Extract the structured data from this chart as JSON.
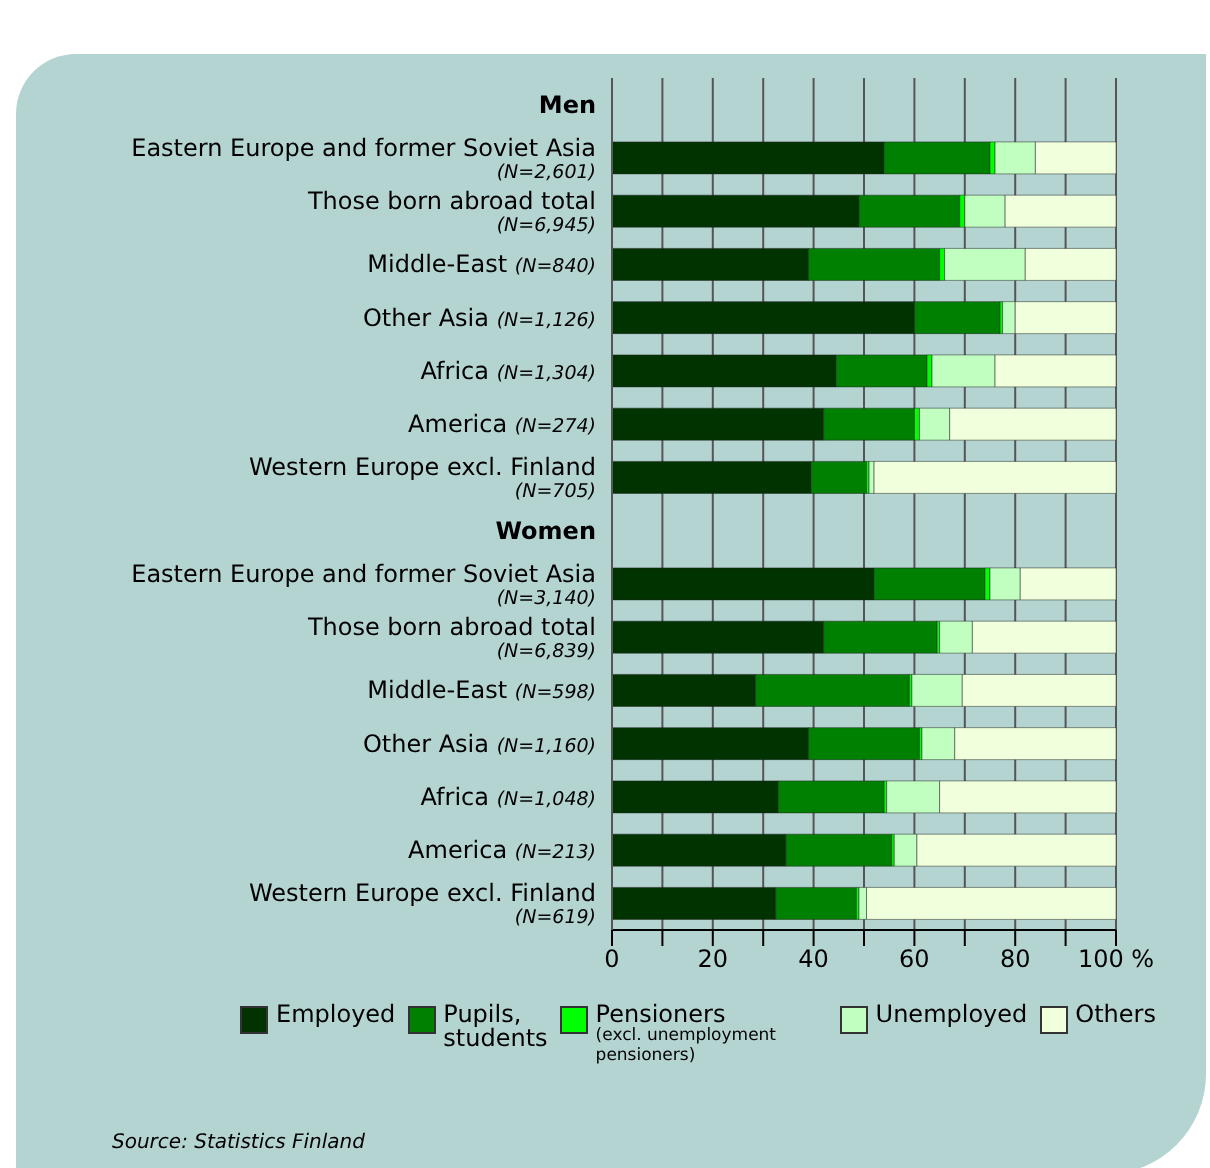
{
  "chart_data": {
    "type": "bar",
    "orientation": "horizontal",
    "stacked": true,
    "categories": [
      "Men",
      "Eastern Europe and former Soviet Asia (N=2,601)",
      "Those born abroad total (N=6,945)",
      "Middle-East (N=840)",
      "Other Asia (N=1,126)",
      "Africa (N=1,304)",
      "America (N=274)",
      "Western Europe excl. Finland (N=705)",
      "Women",
      "Eastern Europe and former Soviet Asia (N=3,140)",
      "Those born abroad total (N=6,839)",
      "Middle-East (N=598)",
      "Other Asia (N=1,160)",
      "Africa (N=1,048)",
      "America (N=213)",
      "Western Europe excl. Finland (N=619)"
    ],
    "series": [
      {
        "name": "Employed",
        "color": "#003300",
        "values": [
          null,
          54,
          49,
          39,
          60,
          44.5,
          42,
          39.5,
          null,
          52,
          42,
          28.5,
          39,
          33,
          34.5,
          32.5
        ]
      },
      {
        "name": "Pupils, students",
        "color": "#008000",
        "values": [
          null,
          21,
          20,
          26,
          17,
          18,
          18,
          11,
          null,
          22,
          22.5,
          30.5,
          22,
          21,
          21,
          16
        ]
      },
      {
        "name": "Pensioners (excl. unemployment pensioners)",
        "color": "#00ff00",
        "values": [
          null,
          1,
          1,
          1,
          0.5,
          1,
          1,
          0.5,
          null,
          1,
          0.5,
          0.5,
          0.5,
          0.5,
          0.5,
          0.5
        ]
      },
      {
        "name": "Unemployed",
        "color": "#c0ffc0",
        "values": [
          null,
          8,
          8,
          16,
          2.5,
          12.5,
          6,
          1,
          null,
          6,
          6.5,
          10,
          6.5,
          10.5,
          4.5,
          1.5
        ]
      },
      {
        "name": "Others",
        "color": "#f0ffdc",
        "values": [
          null,
          16,
          22,
          18,
          20,
          24,
          33,
          48,
          null,
          19,
          28.5,
          30.5,
          32,
          35,
          39.5,
          49.5
        ]
      }
    ],
    "xlim": [
      0,
      100
    ],
    "xticks": [
      0,
      {
        "value": 10,
        "label": null
      },
      20,
      {
        "value": 30,
        "label": null
      },
      40,
      {
        "value": 50,
        "label": null
      },
      60,
      {
        "value": 70,
        "label": null
      },
      80,
      {
        "value": 90,
        "label": null
      },
      {
        "value": 100,
        "label": "100 %"
      }
    ],
    "grid": "x",
    "legend": "bottom",
    "annotations": [
      "Source: Statistics Finland"
    ]
  }
}
